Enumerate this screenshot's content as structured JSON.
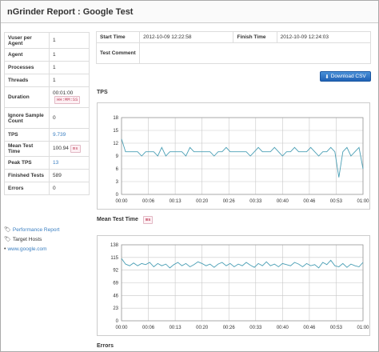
{
  "title": "nGrinder Report : Google Test",
  "summary": [
    {
      "key": "Vuser per Agent",
      "value": "1"
    },
    {
      "key": "Agent",
      "value": "1"
    },
    {
      "key": "Processes",
      "value": "1"
    },
    {
      "key": "Threads",
      "value": "1"
    },
    {
      "key": "Duration",
      "value": "00:01:00",
      "unit": "HH:MM:SS"
    },
    {
      "key": "Ignore Sample Count",
      "value": "0"
    },
    {
      "key": "TPS",
      "value": "9.739"
    },
    {
      "key": "Mean Test Time",
      "value": "100.94",
      "unit": "ms"
    },
    {
      "key": "Peak TPS",
      "value": "13"
    },
    {
      "key": "Finished Tests",
      "value": "589"
    },
    {
      "key": "Errors",
      "value": "0"
    }
  ],
  "links": {
    "performance_report": "Performance Report",
    "target_hosts": "Target Hosts",
    "host": "www.google.com"
  },
  "info": {
    "start_label": "Start Time",
    "start_value": "2012-10-09 12:22:58",
    "finish_label": "Finish Time",
    "finish_value": "2012-10-09 12:24:03",
    "comment_label": "Test Comment",
    "comment_value": ""
  },
  "download_label": "Download CSV",
  "sections": {
    "tps": "TPS",
    "mean": "Mean Test Time",
    "mean_unit": "ms",
    "errors": "Errors"
  },
  "colors": {
    "line": "#4a9fb5",
    "grid": "#c8c8c8",
    "link": "#3a7fc2",
    "button": "#1f62b5"
  },
  "chart_data": [
    {
      "type": "line",
      "title": "TPS",
      "x_ticks": [
        "00:00",
        "00:06",
        "00:13",
        "00:20",
        "00:26",
        "00:33",
        "00:40",
        "00:46",
        "00:53",
        "01:00"
      ],
      "y_ticks": [
        0,
        3,
        6,
        9,
        12,
        15,
        18
      ],
      "ylim": [
        0,
        18
      ],
      "xlim": [
        0,
        60
      ],
      "grid": true,
      "series": [
        {
          "values": [
            13,
            10,
            10,
            10,
            10,
            9,
            10,
            10,
            10,
            9,
            11,
            9,
            10,
            10,
            10,
            10,
            9,
            11,
            10,
            10,
            10,
            10,
            10,
            9,
            10,
            10,
            11,
            10,
            10,
            10,
            10,
            10,
            9,
            10,
            11,
            10,
            10,
            10,
            11,
            10,
            9,
            10,
            10,
            11,
            10,
            10,
            10,
            11,
            10,
            9,
            10,
            10,
            11,
            10,
            4,
            10,
            11,
            9,
            10,
            11,
            6
          ]
        }
      ]
    },
    {
      "type": "line",
      "title": "Mean Test Time",
      "x_ticks": [
        "00:00",
        "00:06",
        "00:13",
        "00:20",
        "00:26",
        "00:33",
        "00:40",
        "00:46",
        "00:53",
        "01:00"
      ],
      "y_ticks": [
        0,
        23,
        46,
        69,
        92,
        115,
        138
      ],
      "ylim": [
        0,
        138
      ],
      "xlim": [
        0,
        60
      ],
      "grid": true,
      "series": [
        {
          "values": [
            113,
            103,
            100,
            105,
            100,
            104,
            102,
            106,
            98,
            104,
            100,
            103,
            96,
            102,
            106,
            100,
            104,
            98,
            102,
            107,
            104,
            100,
            103,
            97,
            103,
            106,
            100,
            104,
            98,
            103,
            100,
            106,
            101,
            97,
            104,
            100,
            107,
            100,
            103,
            98,
            104,
            102,
            100,
            106,
            103,
            98,
            104,
            100,
            102,
            96,
            106,
            102,
            110,
            100,
            98,
            104,
            97,
            103,
            100,
            98,
            106
          ]
        }
      ]
    }
  ]
}
